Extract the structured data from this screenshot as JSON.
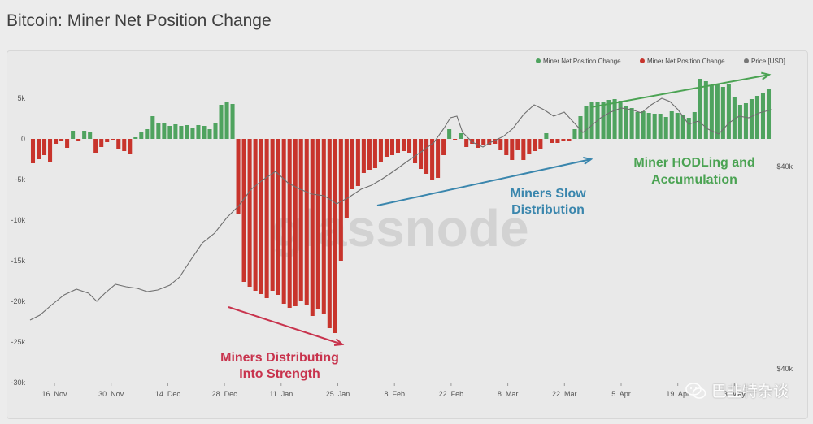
{
  "page": {
    "title": "Bitcoin: Miner Net Position Change"
  },
  "watermark": {
    "text": "巴韭特杂谈",
    "icon": "wechat-icon",
    "chart_watermark": "glassnode"
  },
  "chart_data": {
    "type": "bar",
    "title": "Bitcoin: Miner Net Position Change",
    "legend": [
      {
        "label": "Miner Net Position Change",
        "color": "#4fa35f"
      },
      {
        "label": "Miner Net Position Change",
        "color": "#c8342c"
      },
      {
        "label": "Price [USD]",
        "color": "#777777"
      }
    ],
    "legend_position": "top-right",
    "grid": false,
    "y_axis": {
      "ylim": [
        -30000,
        10000
      ],
      "ticks": [
        5000,
        0,
        -5000,
        -10000,
        -15000,
        -20000,
        -25000,
        -30000
      ],
      "tick_labels": [
        "5k",
        "0",
        "-5k",
        "-10k",
        "-15k",
        "-20k",
        "-25k",
        "-30k"
      ]
    },
    "y2_axis": {
      "tick_labels": [
        "$40k",
        "$40k"
      ]
    },
    "x_axis": {
      "tick_labels": [
        "16. Nov",
        "30. Nov",
        "14. Dec",
        "28. Dec",
        "11. Jan",
        "25. Jan",
        "8. Feb",
        "22. Feb",
        "8. Mar",
        "22. Mar",
        "5. Apr",
        "19. Apr",
        "3. May"
      ]
    },
    "positive_color": "#4fa35f",
    "negative_color": "#c8342c",
    "values": [
      -3000,
      -2500,
      -2000,
      -2800,
      -600,
      -300,
      -1100,
      1000,
      -200,
      1000,
      900,
      -1700,
      -1000,
      -400,
      -100,
      -1200,
      -1500,
      -1900,
      200,
      900,
      1200,
      2800,
      1900,
      1900,
      1600,
      1800,
      1600,
      1700,
      1300,
      1700,
      1600,
      1200,
      2000,
      4200,
      4500,
      4300,
      -9200,
      -17600,
      -18200,
      -18700,
      -19100,
      -19600,
      -18700,
      -19200,
      -20300,
      -20800,
      -20600,
      -19900,
      -20400,
      -21800,
      -20900,
      -21600,
      -23300,
      -23900,
      -15000,
      -9800,
      -6200,
      -5800,
      -4200,
      -3800,
      -3600,
      -2800,
      -2200,
      -2000,
      -1700,
      -1500,
      -1700,
      -3000,
      -3700,
      -4300,
      -5100,
      -4800,
      -2000,
      1200,
      -100,
      700,
      -1000,
      -600,
      -1100,
      -700,
      -800,
      -600,
      -1400,
      -2000,
      -2600,
      -1400,
      -2600,
      -1900,
      -1500,
      -1200,
      700,
      -500,
      -500,
      -300,
      -200,
      1200,
      2800,
      4000,
      4500,
      4500,
      4600,
      4800,
      4900,
      4700,
      4100,
      3800,
      3300,
      3400,
      3200,
      3100,
      3100,
      2700,
      3400,
      3200,
      3000,
      2600,
      3300,
      7400,
      7100,
      6600,
      6800,
      6400,
      6700,
      5100,
      4200,
      4400,
      4900,
      5300,
      5600,
      6100
    ]
  },
  "annotations": [
    {
      "text": [
        "Miners Distributing",
        "Into Strength"
      ],
      "color": "#c8334d"
    },
    {
      "text": [
        "Miners Slow",
        "Distribution"
      ],
      "color": "#3a86ad"
    },
    {
      "text": [
        "Miner HODLing and",
        "Accumulation"
      ],
      "color": "#4ba353"
    }
  ]
}
